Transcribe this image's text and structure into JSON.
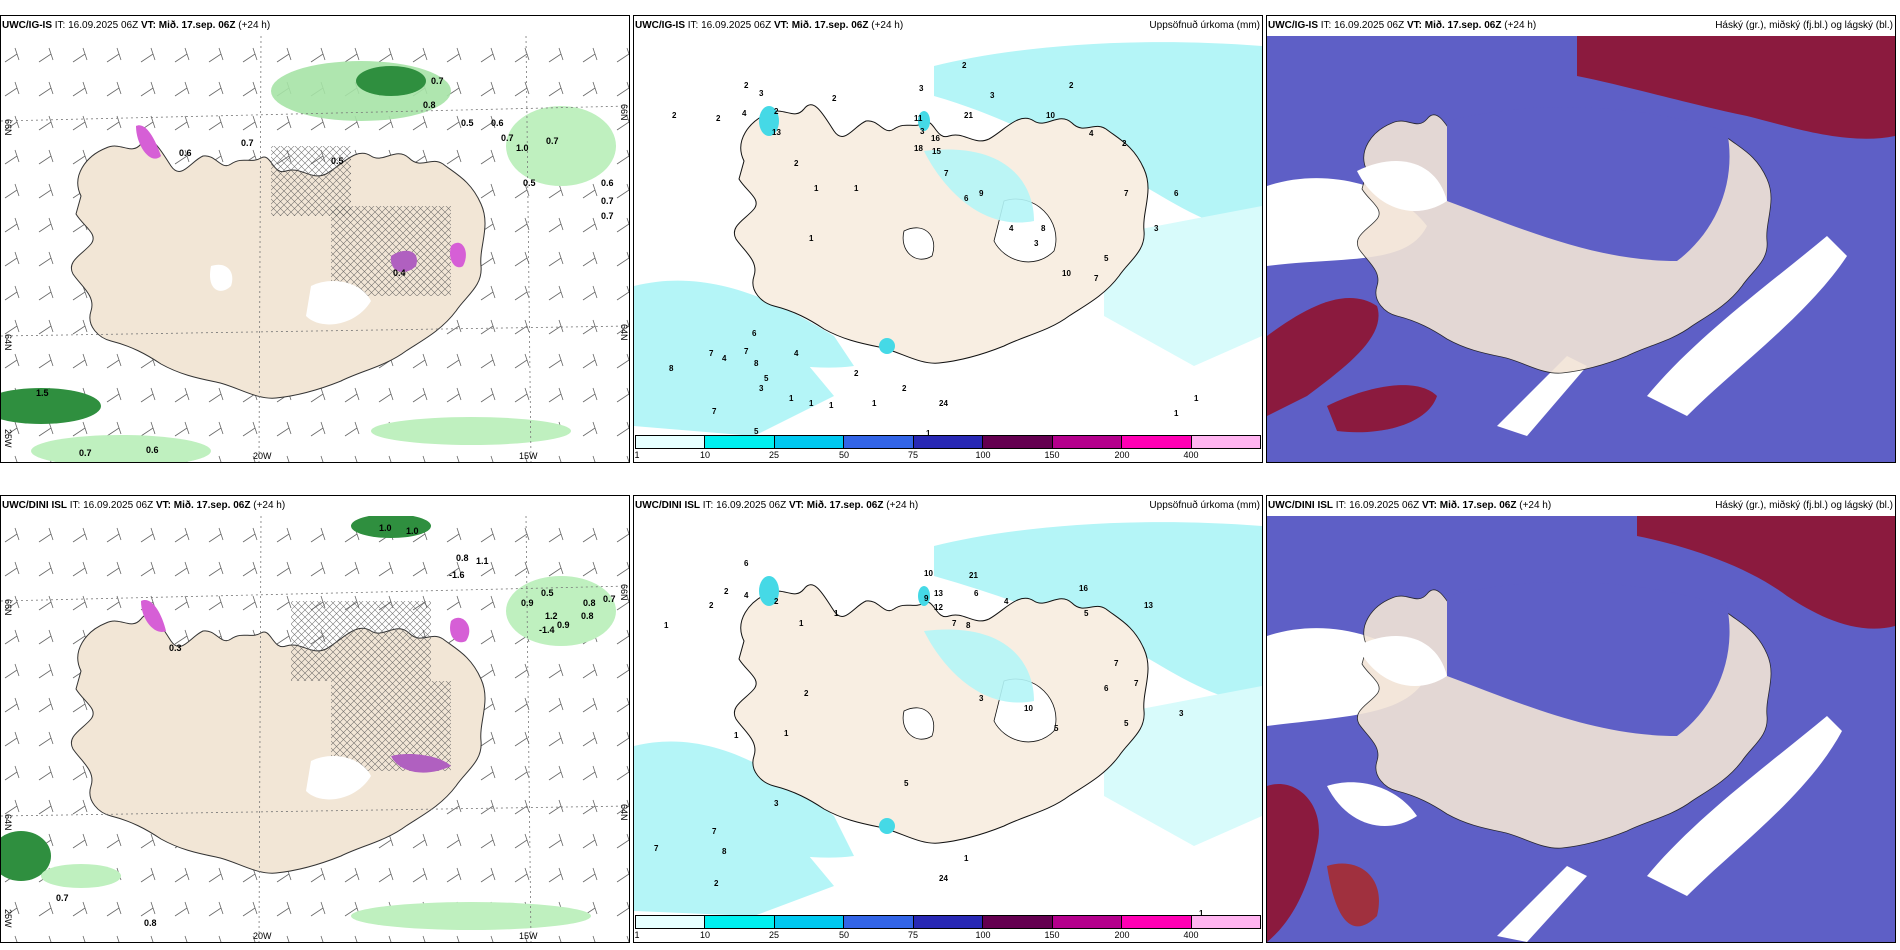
{
  "panels": [
    {
      "model": "UWC/IG-IS",
      "it": "IT: 16.09.2025 06Z",
      "vt_label": "VT:",
      "vt": "Mið. 17.sep. 06Z",
      "lead": "(+24 h)",
      "right": ""
    },
    {
      "model": "UWC/IG-IS",
      "it": "IT: 16.09.2025 06Z",
      "vt_label": "VT:",
      "vt": "Mið. 17.sep. 06Z",
      "lead": "(+24 h)",
      "right": "Uppsöfnuð úrkoma (mm)"
    },
    {
      "model": "UWC/IG-IS",
      "it": "IT: 16.09.2025 06Z",
      "vt_label": "VT:",
      "vt": "Mið. 17.sep. 06Z",
      "lead": "(+24 h)",
      "right": "Háský (gr.), miðský (fj.bl.) og lágský (bl.)"
    },
    {
      "model": "UWC/DINI ISL",
      "it": "IT: 16.09.2025 06Z",
      "vt_label": "VT:",
      "vt": "Mið. 17.sep. 06Z",
      "lead": "(+24 h)",
      "right": ""
    },
    {
      "model": "UWC/DINI ISL",
      "it": "IT: 16.09.2025 06Z",
      "vt_label": "VT:",
      "vt": "Mið. 17.sep. 06Z",
      "lead": "(+24 h)",
      "right": "Uppsöfnuð úrkoma (mm)"
    },
    {
      "model": "UWC/DINI ISL",
      "it": "IT: 16.09.2025 06Z",
      "vt_label": "VT:",
      "vt": "Mið. 17.sep. 06Z",
      "lead": "(+24 h)",
      "right": "Háský (gr.), miðský (fj.bl.) og lágský (bl.)"
    }
  ],
  "grid_labels": {
    "lat66": "66N",
    "lat64": "64N",
    "lon25": "25W",
    "lon20": "20W",
    "lon15": "15W"
  },
  "colorbar": {
    "ticks": [
      "1",
      "10",
      "25",
      "50",
      "75",
      "100",
      "150",
      "200",
      "400"
    ],
    "colors": [
      "#e6ffff",
      "#00f0f0",
      "#00c8f0",
      "#3264e6",
      "#2828b4",
      "#640050",
      "#b4008c",
      "#ff00b4",
      "#ffb4f0"
    ]
  },
  "wind_labels": {
    "top": [
      "0.6",
      "0.7",
      "0.7",
      "0.8",
      "0.5",
      "0.6",
      "0.7",
      "1.0",
      "0.5",
      "0.7",
      "0.6",
      "0.7",
      "0.7",
      "0.5",
      "0.4",
      "1.5",
      "0.7",
      "0.6"
    ],
    "bottom": [
      "1.0",
      "1.0",
      "0.8",
      "1.1",
      "-1.6",
      "0.9",
      "0.5",
      "0.8",
      "0.7",
      "0.8",
      "1.2",
      "-1.4",
      "0.9",
      "0.3",
      "0.7",
      "0.8"
    ]
  },
  "precip_labels": {
    "top": [
      "2",
      "2",
      "2",
      "4",
      "3",
      "2",
      "13",
      "2",
      "3",
      "11",
      "3",
      "18",
      "16",
      "15",
      "21",
      "2",
      "3",
      "10",
      "2",
      "4",
      "2",
      "1",
      "7",
      "6",
      "9",
      "8",
      "4",
      "3",
      "5",
      "7",
      "3",
      "10",
      "7",
      "6",
      "8",
      "4",
      "2",
      "1",
      "1",
      "7",
      "6",
      "7",
      "8",
      "5",
      "3",
      "4",
      "2",
      "24",
      "1",
      "1",
      "1",
      "5",
      "7",
      "2",
      "1",
      "1",
      "1",
      "1"
    ],
    "bottom": [
      "2",
      "1",
      "2",
      "4",
      "6",
      "2",
      "1",
      "1",
      "10",
      "9",
      "13",
      "12",
      "21",
      "8",
      "7",
      "6",
      "4",
      "16",
      "13",
      "5",
      "10",
      "5",
      "3",
      "6",
      "7",
      "7",
      "5",
      "3",
      "2",
      "1",
      "5",
      "24",
      "1",
      "7",
      "8",
      "7",
      "1",
      "3",
      "2",
      "9",
      "1",
      "1"
    ]
  }
}
